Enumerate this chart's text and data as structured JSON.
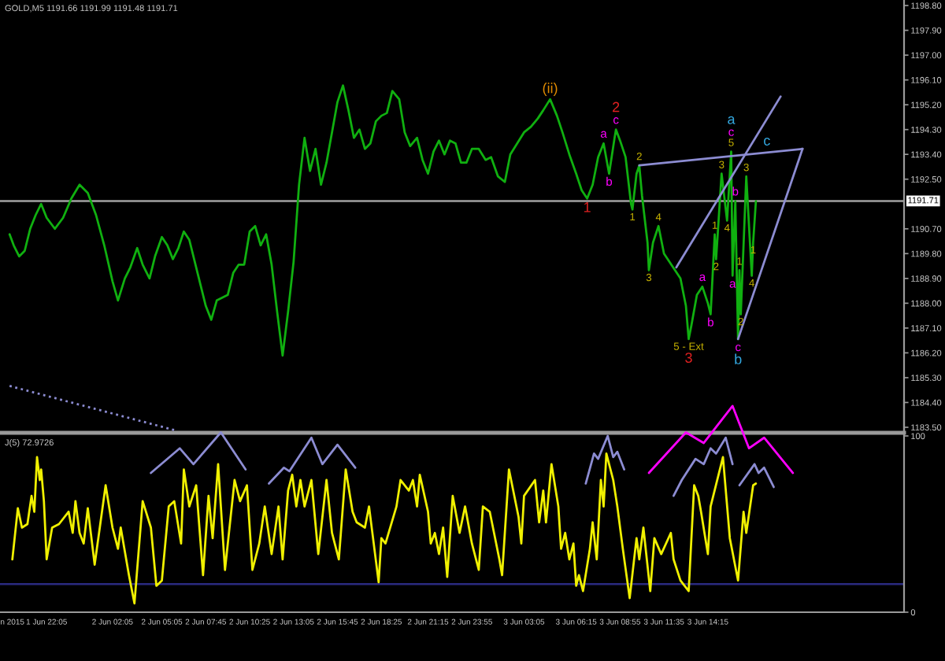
{
  "chart_data": [
    {
      "type": "line",
      "title": "GOLD,M5 1191.66 1191.99 1191.48 1191.71",
      "series": [
        {
          "type": "line",
          "color": "#10b010",
          "x": [
            "2015-06-01T19:50",
            "2015-06-01T20:05",
            "2015-06-01T20:25",
            "2015-06-01T20:45",
            "2015-06-01T21:05",
            "2015-06-01T21:25",
            "2015-06-01T21:45",
            "2015-06-01T22:05",
            "2015-06-01T22:35",
            "2015-06-01T23:05",
            "2015-06-01T23:35",
            "2015-06-02T00:05",
            "2015-06-02T00:35",
            "2015-06-02T01:05",
            "2015-06-02T01:35",
            "2015-06-02T02:05",
            "2015-06-02T02:25",
            "2015-06-02T02:50",
            "2015-06-02T03:10",
            "2015-06-02T03:35",
            "2015-06-02T03:55",
            "2015-06-02T04:20",
            "2015-06-02T04:40",
            "2015-06-02T05:05",
            "2015-06-02T05:25",
            "2015-06-02T05:45",
            "2015-06-02T06:05",
            "2015-06-02T06:25",
            "2015-06-02T06:45",
            "2015-06-02T07:05",
            "2015-06-02T07:25",
            "2015-06-02T07:45",
            "2015-06-02T08:05",
            "2015-06-02T08:25",
            "2015-06-02T08:45",
            "2015-06-02T09:05",
            "2015-06-02T09:25",
            "2015-06-02T09:45",
            "2015-06-02T10:05",
            "2015-06-02T10:25",
            "2015-06-02T10:45",
            "2015-06-02T11:05",
            "2015-06-02T11:25",
            "2015-06-02T11:45",
            "2015-06-02T12:05",
            "2015-06-02T12:25",
            "2015-06-02T12:45",
            "2015-06-02T13:05",
            "2015-06-02T13:25",
            "2015-06-02T13:45",
            "2015-06-02T14:05",
            "2015-06-02T14:25",
            "2015-06-02T14:45",
            "2015-06-02T15:05",
            "2015-06-02T15:25",
            "2015-06-02T15:45",
            "2015-06-02T16:05",
            "2015-06-02T16:25",
            "2015-06-02T16:45",
            "2015-06-02T17:05",
            "2015-06-02T17:25",
            "2015-06-02T17:45",
            "2015-06-02T18:05",
            "2015-06-02T18:25",
            "2015-06-02T18:45",
            "2015-06-02T19:05",
            "2015-06-02T19:30",
            "2015-06-02T19:50",
            "2015-06-02T20:10",
            "2015-06-02T20:35",
            "2015-06-02T20:55",
            "2015-06-02T21:15",
            "2015-06-02T21:35",
            "2015-06-02T21:55",
            "2015-06-02T22:15",
            "2015-06-02T22:35",
            "2015-06-02T22:55",
            "2015-06-02T23:15",
            "2015-06-02T23:35",
            "2015-06-02T23:55",
            "2015-06-03T00:20",
            "2015-06-03T00:45",
            "2015-06-03T01:05",
            "2015-06-03T01:30",
            "2015-06-03T01:55",
            "2015-06-03T02:15",
            "2015-06-03T02:40",
            "2015-06-03T03:05",
            "2015-06-03T03:30",
            "2015-06-03T03:55",
            "2015-06-03T04:15",
            "2015-06-03T04:40",
            "2015-06-03T05:05",
            "2015-06-03T05:25",
            "2015-06-03T05:50",
            "2015-06-03T06:15",
            "2015-06-03T06:35",
            "2015-06-03T06:55",
            "2015-06-03T07:15",
            "2015-06-03T07:35",
            "2015-06-03T07:55",
            "2015-06-03T08:15",
            "2015-06-03T08:35",
            "2015-06-03T08:40",
            "2015-06-03T08:55",
            "2015-06-03T09:15",
            "2015-06-03T09:35",
            "2015-06-03T09:40",
            "2015-06-03T09:55",
            "2015-06-03T10:05",
            "2015-06-03T10:15",
            "2015-06-03T10:35",
            "2015-06-03T10:40",
            "2015-06-03T10:55",
            "2015-06-03T11:15",
            "2015-06-03T11:35",
            "2015-06-03T11:55",
            "2015-06-03T12:15",
            "2015-06-03T12:35",
            "2015-06-03T12:55",
            "2015-06-03T13:05",
            "2015-06-03T13:15",
            "2015-06-03T13:35",
            "2015-06-03T13:55",
            "2015-06-03T14:15",
            "2015-06-03T14:25",
            "2015-06-03T14:40",
            "2015-06-03T14:45",
            "2015-06-03T15:05",
            "2015-06-03T15:25",
            "2015-06-03T15:40",
            "2015-06-03T15:45",
            "2015-06-03T15:55",
            "2015-06-03T16:05",
            "2015-06-03T16:10",
            "2015-06-03T16:15",
            "2015-06-03T16:35",
            "2015-06-03T16:55",
            "2015-06-03T17:00",
            "2015-06-03T17:10"
          ],
          "values": [
            1190.5,
            1190.1,
            1189.7,
            1189.9,
            1190.7,
            1191.2,
            1191.6,
            1191.1,
            1190.7,
            1191.1,
            1191.8,
            1192.3,
            1192.0,
            1191.2,
            1190.1,
            1188.8,
            1188.1,
            1188.9,
            1189.3,
            1190.0,
            1189.4,
            1188.9,
            1189.7,
            1190.4,
            1190.1,
            1189.6,
            1190.0,
            1190.6,
            1190.3,
            1189.5,
            1188.7,
            1187.9,
            1187.4,
            1188.1,
            1188.2,
            1188.3,
            1189.1,
            1189.4,
            1189.4,
            1190.6,
            1190.8,
            1190.1,
            1190.5,
            1189.4,
            1187.7,
            1186.1,
            1187.7,
            1189.5,
            1192.3,
            1194.0,
            1192.8,
            1193.6,
            1192.3,
            1193.1,
            1194.2,
            1195.3,
            1195.9,
            1195.0,
            1194.0,
            1194.3,
            1193.6,
            1193.8,
            1194.6,
            1194.8,
            1194.9,
            1195.7,
            1195.4,
            1194.2,
            1193.7,
            1194.0,
            1193.2,
            1192.7,
            1193.5,
            1193.9,
            1193.4,
            1193.9,
            1193.8,
            1193.1,
            1193.1,
            1193.6,
            1193.6,
            1193.2,
            1193.3,
            1192.6,
            1192.4,
            1193.4,
            1193.8,
            1194.2,
            1194.4,
            1194.7,
            1195.0,
            1195.4,
            1194.8,
            1194.2,
            1193.4,
            1192.7,
            1192.1,
            1191.8,
            1192.3,
            1193.3,
            1193.8,
            1192.7,
            1194.0,
            1194.3,
            1193.9,
            1193.3,
            1191.6,
            1191.4,
            1192.7,
            1193.0,
            1191.9,
            1190.2,
            1189.2,
            1190.2,
            1190.8,
            1189.8,
            1189.5,
            1189.2,
            1188.9,
            1187.9,
            1186.7,
            1187.2,
            1188.3,
            1188.6,
            1188.0,
            1187.6,
            1190.5,
            1189.6,
            1192.7,
            1191.0,
            1193.5,
            1189.0,
            1191.7,
            1186.7,
            1189.2,
            1187.6,
            1192.6,
            1189.0,
            1190.2,
            1191.7
          ]
        },
        {
          "type": "line",
          "color": "#8c8cd2",
          "x": [
            "2015-06-03T10:05",
            "2015-06-03T20:00"
          ],
          "values": [
            1193.0,
            1193.6
          ]
        },
        {
          "type": "line",
          "color": "#8c8cd2",
          "x": [
            "2015-06-03T12:20",
            "2015-06-03T18:40"
          ],
          "values": [
            1189.3,
            1195.5
          ]
        },
        {
          "type": "line",
          "color": "#8c8cd2",
          "x": [
            "2015-06-03T16:05",
            "2015-06-03T20:00"
          ],
          "values": [
            1186.7,
            1193.6
          ]
        },
        {
          "type": "line",
          "color": "#8c8cd2",
          "line_style": "dotted",
          "x": [
            "2015-06-01T19:50",
            "2015-06-02T05:50"
          ],
          "values": [
            1185.0,
            1183.4
          ]
        }
      ],
      "annotations": [
        {
          "text": "(ii)",
          "x": "2015-06-03T04:40",
          "y": 1195.4
        },
        {
          "text": "c",
          "x": "2015-06-03T08:40",
          "y": 1194.3
        },
        {
          "text": "2",
          "x": "2015-06-03T08:40",
          "y": 1194.3
        },
        {
          "text": "a",
          "x": "2015-06-03T07:55",
          "y": 1193.8
        },
        {
          "text": "b",
          "x": "2015-06-03T08:15",
          "y": 1192.7
        },
        {
          "text": "1",
          "x": "2015-06-03T06:55",
          "y": 1191.8
        },
        {
          "text": "1",
          "x": "2015-06-03T09:40",
          "y": 1191.4
        },
        {
          "text": "2",
          "x": "2015-06-03T10:05",
          "y": 1193.0
        },
        {
          "text": "3",
          "x": "2015-06-03T10:40",
          "y": 1189.2
        },
        {
          "text": "4",
          "x": "2015-06-03T11:15",
          "y": 1190.8
        },
        {
          "text": "5 - Ext",
          "x": "2015-06-03T13:05",
          "y": 1186.7
        },
        {
          "text": "3",
          "x": "2015-06-03T13:05",
          "y": 1186.7
        },
        {
          "text": "a",
          "x": "2015-06-03T13:55",
          "y": 1188.6
        },
        {
          "text": "b",
          "x": "2015-06-03T14:25",
          "y": 1187.6
        },
        {
          "text": "1",
          "x": "2015-06-03T14:40",
          "y": 1190.5
        },
        {
          "text": "2",
          "x": "2015-06-03T14:45",
          "y": 1189.6
        },
        {
          "text": "3",
          "x": "2015-06-03T15:05",
          "y": 1192.7
        },
        {
          "text": "4",
          "x": "2015-06-03T15:25",
          "y": 1191.0
        },
        {
          "text": "5",
          "x": "2015-06-03T15:40",
          "y": 1193.5
        },
        {
          "text": "c",
          "x": "2015-06-03T15:40",
          "y": 1193.5
        },
        {
          "text": "a",
          "x": "2015-06-03T15:40",
          "y": 1193.5
        },
        {
          "text": "a",
          "x": "2015-06-03T15:45",
          "y": 1189.0
        },
        {
          "text": "b",
          "x": "2015-06-03T15:55",
          "y": 1191.7
        },
        {
          "text": "c",
          "x": "2015-06-03T16:05",
          "y": 1186.7
        },
        {
          "text": "b",
          "x": "2015-06-03T16:05",
          "y": 1186.7
        },
        {
          "text": "1",
          "x": "2015-06-03T16:10",
          "y": 1189.2
        },
        {
          "text": "2",
          "x": "2015-06-03T16:15",
          "y": 1187.6
        },
        {
          "text": "3",
          "x": "2015-06-03T16:35",
          "y": 1192.6
        },
        {
          "text": "4",
          "x": "2015-06-03T16:55",
          "y": 1189.0
        },
        {
          "text": "1",
          "x": "2015-06-03T17:00",
          "y": 1190.2
        },
        {
          "text": "c",
          "x": "2015-06-03T17:50",
          "y": 1193.5
        }
      ],
      "xlim": [
        "2015-06-01T19:15",
        "2015-06-04T02:10"
      ],
      "ylim": [
        1183.3,
        1199.0
      ],
      "yticks": [
        {
          "value": 1183.5,
          "label": "1183.50"
        },
        {
          "value": 1184.4,
          "label": "1184.40"
        },
        {
          "value": 1185.3,
          "label": "1185.30"
        },
        {
          "value": 1186.2,
          "label": "1186.20"
        },
        {
          "value": 1187.1,
          "label": "1187.10"
        },
        {
          "value": 1188.0,
          "label": "1188.00"
        },
        {
          "value": 1188.9,
          "label": "1188.90"
        },
        {
          "value": 1189.8,
          "label": "1189.80"
        },
        {
          "value": 1190.7,
          "label": "1190.70"
        },
        {
          "value": 1192.5,
          "label": "1192.50"
        },
        {
          "value": 1193.4,
          "label": "1193.40"
        },
        {
          "value": 1194.3,
          "label": "1194.30"
        },
        {
          "value": 1195.2,
          "label": "1195.20"
        },
        {
          "value": 1196.1,
          "label": "1196.10"
        },
        {
          "value": 1197.0,
          "label": "1197.00"
        },
        {
          "value": 1197.9,
          "label": "1197.90"
        },
        {
          "value": 1198.8,
          "label": "1198.80"
        }
      ],
      "ref_lines": [
        {
          "axis": "y",
          "value": 1191.71,
          "label": "1191.71",
          "color": "#a0a0a0"
        }
      ],
      "tick_labels": "y"
    },
    {
      "type": "line",
      "title": "J(5) 72.9726",
      "series": [
        {
          "type": "line",
          "color": "#f0f000",
          "x": [
            "2015-06-01T20:00",
            "2015-06-01T20:20",
            "2015-06-01T20:35",
            "2015-06-01T20:55",
            "2015-06-01T21:10",
            "2015-06-01T21:20",
            "2015-06-01T21:30",
            "2015-06-01T21:40",
            "2015-06-01T21:45",
            "2015-06-01T21:55",
            "2015-06-01T22:05",
            "2015-06-01T22:25",
            "2015-06-01T22:50",
            "2015-06-01T23:25",
            "2015-06-01T23:40",
            "2015-06-01T23:50",
            "2015-06-02T00:05",
            "2015-06-02T00:20",
            "2015-06-02T00:35",
            "2015-06-02T01:00",
            "2015-06-02T01:40",
            "2015-06-02T02:05",
            "2015-06-02T02:25",
            "2015-06-02T02:35",
            "2015-06-02T03:05",
            "2015-06-02T03:25",
            "2015-06-02T03:55",
            "2015-06-02T04:25",
            "2015-06-02T04:45",
            "2015-06-02T05:05",
            "2015-06-02T05:30",
            "2015-06-02T05:50",
            "2015-06-02T06:15",
            "2015-06-02T06:25",
            "2015-06-02T06:45",
            "2015-06-02T07:10",
            "2015-06-02T07:35",
            "2015-06-02T07:55",
            "2015-06-02T08:10",
            "2015-06-02T08:30",
            "2015-06-02T08:55",
            "2015-06-02T09:30",
            "2015-06-02T09:50",
            "2015-06-02T10:15",
            "2015-06-02T10:35",
            "2015-06-02T11:00",
            "2015-06-02T11:20",
            "2015-06-02T11:45",
            "2015-06-02T12:10",
            "2015-06-02T12:25",
            "2015-06-02T12:45",
            "2015-06-02T13:00",
            "2015-06-02T13:15",
            "2015-06-02T13:30",
            "2015-06-02T13:45",
            "2015-06-02T14:10",
            "2015-06-02T14:35",
            "2015-06-02T15:05",
            "2015-06-02T15:25",
            "2015-06-02T15:50",
            "2015-06-02T16:15",
            "2015-06-02T16:40",
            "2015-06-02T16:55",
            "2015-06-02T17:25",
            "2015-06-02T17:40",
            "2015-06-02T18:15",
            "2015-06-02T18:25",
            "2015-06-02T18:40",
            "2015-06-02T19:20",
            "2015-06-02T19:35",
            "2015-06-02T20:05",
            "2015-06-02T20:20",
            "2015-06-02T20:35",
            "2015-06-02T20:45",
            "2015-06-02T21:15",
            "2015-06-02T21:25",
            "2015-06-02T21:40",
            "2015-06-02T21:55",
            "2015-06-02T22:10",
            "2015-06-02T22:25",
            "2015-06-02T22:45",
            "2015-06-02T23:10",
            "2015-06-02T23:30",
            "2015-06-02T23:55",
            "2015-06-03T00:20",
            "2015-06-03T00:35",
            "2015-06-03T01:00",
            "2015-06-03T01:35",
            "2015-06-03T01:45",
            "2015-06-03T02:10",
            "2015-06-03T02:45",
            "2015-06-03T02:55",
            "2015-06-03T03:05",
            "2015-06-03T03:45",
            "2015-06-03T04:00",
            "2015-06-03T04:15",
            "2015-06-03T04:25",
            "2015-06-03T04:45",
            "2015-06-03T05:10",
            "2015-06-03T05:20",
            "2015-06-03T05:35",
            "2015-06-03T05:50",
            "2015-06-03T06:05",
            "2015-06-03T06:15",
            "2015-06-03T06:25",
            "2015-06-03T06:40",
            "2015-06-03T07:05",
            "2015-06-03T07:15",
            "2015-06-03T07:30",
            "2015-06-03T07:45",
            "2015-06-03T07:55",
            "2015-06-03T08:05",
            "2015-06-03T08:30",
            "2015-06-03T08:45",
            "2015-06-03T09:05",
            "2015-06-03T09:30",
            "2015-06-03T09:55",
            "2015-06-03T10:05",
            "2015-06-03T10:20",
            "2015-06-03T10:45",
            "2015-06-03T11:00",
            "2015-06-03T11:25",
            "2015-06-03T12:00",
            "2015-06-03T12:10",
            "2015-06-03T12:35",
            "2015-06-03T13:05",
            "2015-06-03T13:25",
            "2015-06-03T13:40",
            "2015-06-03T13:50",
            "2015-06-03T14:15",
            "2015-06-03T14:25",
            "2015-06-03T15:10",
            "2015-06-03T15:35",
            "2015-06-03T16:05",
            "2015-06-03T16:25",
            "2015-06-03T16:35",
            "2015-06-03T17:00",
            "2015-06-03T17:10"
          ],
          "values": [
            30,
            59,
            48,
            50,
            66,
            57,
            88,
            75,
            81,
            63,
            30,
            48,
            50,
            57,
            45,
            63,
            45,
            39,
            59,
            27,
            72,
            48,
            36,
            48,
            21,
            5,
            63,
            48,
            15,
            18,
            60,
            63,
            39,
            81,
            60,
            72,
            21,
            66,
            42,
            84,
            24,
            75,
            63,
            72,
            24,
            39,
            60,
            33,
            60,
            30,
            69,
            78,
            60,
            75,
            60,
            75,
            33,
            75,
            45,
            30,
            81,
            57,
            51,
            48,
            60,
            17,
            42,
            39,
            60,
            75,
            69,
            75,
            60,
            78,
            57,
            39,
            45,
            33,
            48,
            20,
            66,
            45,
            60,
            39,
            24,
            60,
            57,
            30,
            21,
            81,
            54,
            39,
            66,
            75,
            51,
            69,
            51,
            84,
            60,
            36,
            45,
            30,
            39,
            15,
            21,
            12,
            36,
            51,
            30,
            75,
            60,
            90,
            75,
            60,
            36,
            8,
            42,
            30,
            48,
            12,
            42,
            33,
            45,
            30,
            18,
            12,
            72,
            66,
            57,
            33,
            60,
            88,
            42,
            18,
            57,
            45,
            72,
            73
          ]
        },
        {
          "type": "line",
          "color": "#8c8cd2",
          "x": [
            "2015-06-02T04:25",
            "2015-06-02T06:10",
            "2015-06-02T07:00",
            "2015-06-02T08:40",
            "2015-06-02T10:10"
          ],
          "values": [
            79,
            93,
            84,
            102,
            81
          ]
        },
        {
          "type": "line",
          "color": "#8c8cd2",
          "x": [
            "2015-06-02T11:35",
            "2015-06-02T12:30",
            "2015-06-02T12:50",
            "2015-06-02T14:10",
            "2015-06-02T14:50",
            "2015-06-02T15:45",
            "2015-06-02T16:50"
          ],
          "values": [
            73,
            82,
            80,
            99,
            84,
            95,
            82
          ]
        },
        {
          "type": "line",
          "color": "#8c8cd2",
          "x": [
            "2015-06-03T06:50",
            "2015-06-03T07:20",
            "2015-06-03T07:35",
            "2015-06-03T08:10",
            "2015-06-03T08:30",
            "2015-06-03T08:45",
            "2015-06-03T09:10"
          ],
          "values": [
            73,
            90,
            87,
            100,
            88,
            91,
            81
          ]
        },
        {
          "type": "line",
          "color": "#ff00ff",
          "x": [
            "2015-06-03T10:40",
            "2015-06-03T12:55",
            "2015-06-03T14:00",
            "2015-06-03T15:45",
            "2015-06-03T16:45",
            "2015-06-03T17:40",
            "2015-06-03T19:25"
          ],
          "values": [
            79,
            102,
            96,
            117,
            93,
            99,
            79
          ]
        },
        {
          "type": "line",
          "color": "#8c8cd2",
          "x": [
            "2015-06-03T12:10",
            "2015-06-03T12:40",
            "2015-06-03T13:30",
            "2015-06-03T14:00",
            "2015-06-03T14:25",
            "2015-06-03T14:45",
            "2015-06-03T15:20",
            "2015-06-03T15:45"
          ],
          "values": [
            66,
            75,
            87,
            84,
            93,
            90,
            99,
            84
          ]
        },
        {
          "type": "line",
          "color": "#8c8cd2",
          "x": [
            "2015-06-03T16:10",
            "2015-06-03T17:05",
            "2015-06-03T17:20",
            "2015-06-03T17:40",
            "2015-06-03T18:15"
          ],
          "values": [
            72,
            84,
            79,
            82,
            71
          ]
        }
      ],
      "xlim": [
        "2015-06-01T19:15",
        "2015-06-04T02:10"
      ],
      "xticks": [
        {
          "value": "2015-06-01T20:00",
          "label": "n 2015"
        },
        {
          "value": "2015-06-01T22:05",
          "label": "1 Jun 22:05"
        },
        {
          "value": "2015-06-02T02:05",
          "label": "2 Jun 02:05"
        },
        {
          "value": "2015-06-02T05:05",
          "label": "2 Jun 05:05"
        },
        {
          "value": "2015-06-02T07:45",
          "label": "2 Jun 07:45"
        },
        {
          "value": "2015-06-02T10:25",
          "label": "2 Jun 10:25"
        },
        {
          "value": "2015-06-02T13:05",
          "label": "2 Jun 13:05"
        },
        {
          "value": "2015-06-02T15:45",
          "label": "2 Jun 15:45"
        },
        {
          "value": "2015-06-02T18:25",
          "label": "2 Jun 18:25"
        },
        {
          "value": "2015-06-02T21:15",
          "label": "2 Jun 21:15"
        },
        {
          "value": "2015-06-02T23:55",
          "label": "2 Jun 23:55"
        },
        {
          "value": "2015-06-03T03:05",
          "label": "3 Jun 03:05"
        },
        {
          "value": "2015-06-03T06:15",
          "label": "3 Jun 06:15"
        },
        {
          "value": "2015-06-03T08:55",
          "label": "3 Jun 08:55"
        },
        {
          "value": "2015-06-03T11:35",
          "label": "3 Jun 11:35"
        },
        {
          "value": "2015-06-03T14:15",
          "label": "3 Jun 14:15"
        }
      ],
      "ylim": [
        0,
        120
      ],
      "yticks": [
        0,
        100
      ],
      "ref_lines": [
        {
          "axis": "y",
          "value": 16,
          "color": "#2a2a80"
        }
      ]
    }
  ]
}
